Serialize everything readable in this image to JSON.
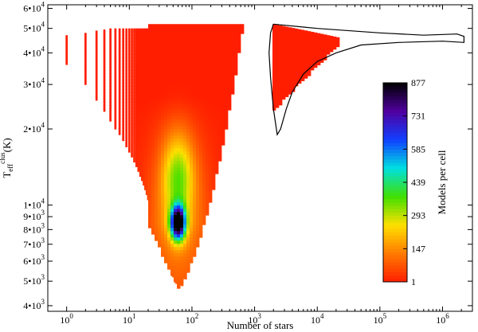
{
  "chart_data": {
    "type": "heatmap",
    "title": "",
    "xlabel": "Number of stars",
    "ylabel": "T",
    "ylabel_sub": "eff",
    "ylabel_sup": "clus",
    "ylabel_unit": "(K)",
    "x_scale": "log",
    "y_scale": "log",
    "xlim": [
      0.5,
      3000000
    ],
    "ylim": [
      3800,
      62000
    ],
    "x_ticks": [
      {
        "value": 1,
        "base": "10",
        "exp": "0"
      },
      {
        "value": 10,
        "base": "10",
        "exp": "1"
      },
      {
        "value": 100,
        "base": "10",
        "exp": "2"
      },
      {
        "value": 1000,
        "base": "10",
        "exp": "3"
      },
      {
        "value": 10000,
        "base": "10",
        "exp": "4"
      },
      {
        "value": 100000,
        "base": "10",
        "exp": "5"
      },
      {
        "value": 1000000,
        "base": "10",
        "exp": "6"
      }
    ],
    "y_ticks": [
      {
        "value": 4000,
        "mant": "4",
        "exp": "3"
      },
      {
        "value": 5000,
        "mant": "5",
        "exp": "3"
      },
      {
        "value": 6000,
        "mant": "6",
        "exp": "3"
      },
      {
        "value": 7000,
        "mant": "7",
        "exp": "3"
      },
      {
        "value": 8000,
        "mant": "8",
        "exp": "3"
      },
      {
        "value": 9000,
        "mant": "9",
        "exp": "3"
      },
      {
        "value": 10000,
        "mant": "1",
        "exp": "4"
      },
      {
        "value": 20000,
        "mant": "2",
        "exp": "4"
      },
      {
        "value": 30000,
        "mant": "3",
        "exp": "4"
      },
      {
        "value": 40000,
        "mant": "4",
        "exp": "4"
      },
      {
        "value": 50000,
        "mant": "5",
        "exp": "4"
      },
      {
        "value": 60000,
        "mant": "6",
        "exp": "4"
      }
    ],
    "colorbar": {
      "label": "Models per cell",
      "ticks": [
        1,
        147,
        293,
        439,
        585,
        731,
        877
      ],
      "min": 1,
      "max": 877,
      "colors": [
        "#ff1e00",
        "#ff7a00",
        "#ffe000",
        "#40e000",
        "#00e0e0",
        "#1040ff",
        "#5000a0",
        "#000000"
      ]
    },
    "density_peak": {
      "n_stars": 60,
      "teff": 8500,
      "value": 877
    },
    "low_n_columns": {
      "n": [
        1,
        2,
        3,
        4,
        5,
        6,
        7,
        8,
        9,
        10,
        11,
        12,
        13,
        14,
        15,
        16,
        17,
        18,
        19,
        20,
        22,
        24,
        26,
        28,
        30,
        33,
        36,
        40,
        45,
        50,
        56,
        63,
        70,
        80,
        90,
        100
      ],
      "teff_low": [
        36000,
        30000,
        26000,
        23500,
        21500,
        20000,
        19000,
        18000,
        17000,
        16200,
        15500,
        14800,
        14200,
        13600,
        13000,
        12500,
        12000,
        11500,
        11000,
        10500,
        9800,
        9200,
        8600,
        8000,
        7500,
        7000,
        6500,
        6000,
        5600,
        5200,
        4900,
        4700,
        4800,
        5100,
        5500,
        6000
      ],
      "teff_high": [
        47000,
        48000,
        49000,
        49500,
        50000,
        50000,
        50000,
        50000,
        50000,
        50000,
        50000,
        50000,
        50000,
        50000,
        50000,
        50000,
        50000,
        50000,
        50000,
        50000,
        50000,
        50000,
        50000,
        50000,
        50000,
        50000,
        50000,
        50000,
        50000,
        50000,
        50000,
        50000,
        50000,
        50000,
        50000,
        52000
      ]
    },
    "black_outline": {
      "upper_edge": [
        [
          2000,
          52000
        ],
        [
          10000,
          50000
        ],
        [
          100000,
          48000
        ],
        [
          500000,
          47000
        ],
        [
          1700000,
          47500
        ],
        [
          2200000,
          46500
        ]
      ],
      "lower_edge": [
        [
          2200000,
          44000
        ],
        [
          1000000,
          44500
        ],
        [
          200000,
          44000
        ],
        [
          50000,
          43000
        ],
        [
          20000,
          40000
        ],
        [
          10000,
          37000
        ],
        [
          6000,
          33000
        ],
        [
          4000,
          28000
        ],
        [
          3200,
          24000
        ],
        [
          2600,
          20000
        ],
        [
          2300,
          19000
        ],
        [
          2000,
          24000
        ],
        [
          1800,
          32000
        ],
        [
          1700,
          40000
        ],
        [
          1800,
          48000
        ],
        [
          2000,
          52000
        ]
      ]
    }
  }
}
